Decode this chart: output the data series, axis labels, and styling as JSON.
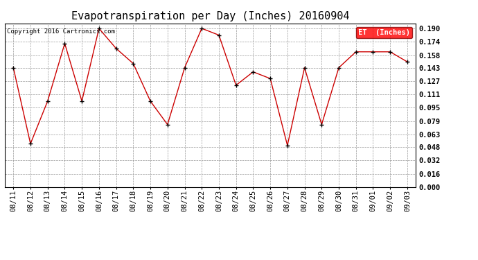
{
  "title": "Evapotranspiration per Day (Inches) 20160904",
  "copyright_text": "Copyright 2016 Cartronics.com",
  "legend_label": "ET  (Inches)",
  "legend_bg": "#ff0000",
  "legend_text_color": "#ffffff",
  "dates": [
    "08/11",
    "08/12",
    "08/13",
    "08/14",
    "08/15",
    "08/16",
    "08/17",
    "08/18",
    "08/19",
    "08/20",
    "08/21",
    "08/22",
    "08/23",
    "08/24",
    "08/25",
    "08/26",
    "08/27",
    "08/28",
    "08/29",
    "08/30",
    "08/31",
    "09/01",
    "09/02",
    "09/03"
  ],
  "values": [
    0.143,
    0.052,
    0.103,
    0.172,
    0.103,
    0.19,
    0.166,
    0.148,
    0.103,
    0.075,
    0.143,
    0.19,
    0.182,
    0.122,
    0.138,
    0.13,
    0.05,
    0.143,
    0.075,
    0.143,
    0.162,
    0.162,
    0.162,
    0.15
  ],
  "line_color": "#cc0000",
  "marker_color": "#000000",
  "bg_color": "#ffffff",
  "grid_color": "#999999",
  "yticks": [
    0.0,
    0.016,
    0.032,
    0.048,
    0.063,
    0.079,
    0.095,
    0.111,
    0.127,
    0.143,
    0.158,
    0.174,
    0.19
  ],
  "ylim": [
    0.0,
    0.196
  ],
  "title_fontsize": 11,
  "copyright_fontsize": 6.5,
  "tick_fontsize": 7.5,
  "legend_fontsize": 7.5
}
